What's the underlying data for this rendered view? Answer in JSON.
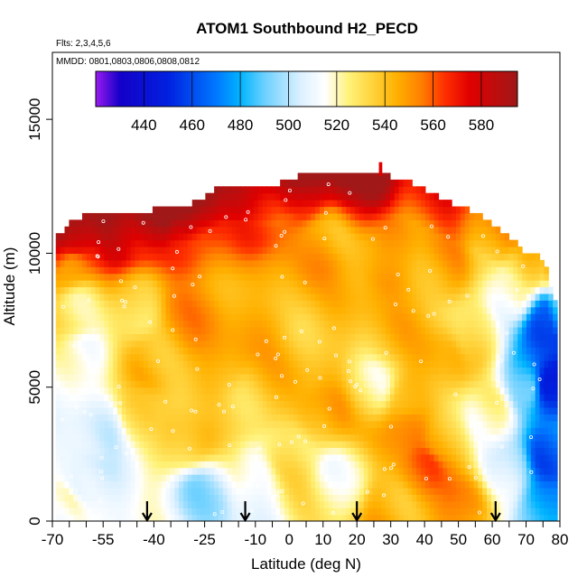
{
  "chart_data": {
    "type": "heatmap",
    "title": "ATOM1 Southbound H2_PECD",
    "subtitle_flights": "Flts: 2,3,4,5,6",
    "subtitle_dates": "MMDD: 0801,0803,0806,0808,0812",
    "xlabel": "Latitude (deg N)",
    "ylabel": "Altitude (m)",
    "xlim": [
      -70,
      80
    ],
    "ylim": [
      0,
      17500
    ],
    "x_ticks_labeled": [
      -70,
      -55,
      -40,
      -25,
      -10,
      0,
      10,
      20,
      30,
      40,
      50,
      60,
      70,
      80
    ],
    "x_tick_labels": [
      "-70",
      "-55",
      "-40",
      "-25",
      "-10",
      "0",
      "10",
      "20",
      "30",
      "40",
      "50",
      "60",
      "70",
      "80"
    ],
    "x_minor_ticks": [
      -65,
      -60,
      -50,
      -45,
      -35,
      -30,
      -20,
      -15,
      -5,
      5,
      15,
      25,
      35,
      45,
      55,
      65,
      75
    ],
    "y_ticks": [
      0,
      5000,
      10000,
      15000
    ],
    "y_tick_labels": [
      "0",
      "5000",
      "10000",
      "15000"
    ],
    "colorbar": {
      "min": 420,
      "max": 595,
      "ticks": [
        440,
        460,
        480,
        500,
        520,
        540,
        560,
        580
      ],
      "tick_labels": [
        "440",
        "460",
        "480",
        "500",
        "520",
        "540",
        "560",
        "580"
      ],
      "stops": [
        {
          "v": 420,
          "c": "#9A1BF0"
        },
        {
          "v": 430,
          "c": "#1400C8"
        },
        {
          "v": 450,
          "c": "#0020E0"
        },
        {
          "v": 470,
          "c": "#0078FF"
        },
        {
          "v": 480,
          "c": "#00B4FF"
        },
        {
          "v": 490,
          "c": "#6CD0FF"
        },
        {
          "v": 505,
          "c": "#DCF0FF"
        },
        {
          "v": 515,
          "c": "#FFFFFF"
        },
        {
          "v": 525,
          "c": "#FFF27A"
        },
        {
          "v": 535,
          "c": "#FFD23A"
        },
        {
          "v": 545,
          "c": "#FFB000"
        },
        {
          "v": 555,
          "c": "#FF8000"
        },
        {
          "v": 565,
          "c": "#FF2E00"
        },
        {
          "v": 575,
          "c": "#E00000"
        },
        {
          "v": 595,
          "c": "#A01818"
        }
      ]
    },
    "profile_markers_lat": [
      -42,
      -13,
      20,
      61
    ],
    "ceiling": [
      {
        "lat": -69,
        "alt": 10500
      },
      {
        "lat": -65,
        "alt": 11000
      },
      {
        "lat": -60,
        "alt": 11300
      },
      {
        "lat": -55,
        "alt": 11500
      },
      {
        "lat": -48,
        "alt": 11500
      },
      {
        "lat": -40,
        "alt": 11500
      },
      {
        "lat": -30,
        "alt": 11600
      },
      {
        "lat": -20,
        "alt": 12400
      },
      {
        "lat": -5,
        "alt": 12400
      },
      {
        "lat": 5,
        "alt": 12900
      },
      {
        "lat": 20,
        "alt": 12900
      },
      {
        "lat": 25,
        "alt": 12900
      },
      {
        "lat": 35,
        "alt": 12600
      },
      {
        "lat": 45,
        "alt": 11900
      },
      {
        "lat": 55,
        "alt": 11400
      },
      {
        "lat": 65,
        "alt": 10500
      },
      {
        "lat": 70,
        "alt": 9900
      },
      {
        "lat": 75,
        "alt": 9700
      },
      {
        "lat": 79,
        "alt": 8000
      }
    ],
    "field_centers": [
      {
        "lat": -67,
        "alt": 500,
        "v": 522
      },
      {
        "lat": -60,
        "alt": 1500,
        "v": 500
      },
      {
        "lat": -55,
        "alt": 3500,
        "v": 510
      },
      {
        "lat": -62,
        "alt": 6000,
        "v": 512
      },
      {
        "lat": -62,
        "alt": 8000,
        "v": 530
      },
      {
        "lat": -65,
        "alt": 9500,
        "v": 552
      },
      {
        "lat": -63,
        "alt": 10500,
        "v": 565
      },
      {
        "lat": -50,
        "alt": 10900,
        "v": 575
      },
      {
        "lat": -40,
        "alt": 11200,
        "v": 580
      },
      {
        "lat": -30,
        "alt": 11000,
        "v": 568
      },
      {
        "lat": -45,
        "alt": 4000,
        "v": 528
      },
      {
        "lat": -40,
        "alt": 6000,
        "v": 545
      },
      {
        "lat": -45,
        "alt": 8000,
        "v": 530
      },
      {
        "lat": -30,
        "alt": 7500,
        "v": 548
      },
      {
        "lat": -20,
        "alt": 6000,
        "v": 545
      },
      {
        "lat": -10,
        "alt": 4500,
        "v": 538
      },
      {
        "lat": -30,
        "alt": 3000,
        "v": 535
      },
      {
        "lat": -25,
        "alt": 1000,
        "v": 500
      },
      {
        "lat": -10,
        "alt": 1500,
        "v": 512
      },
      {
        "lat": 0,
        "alt": 2500,
        "v": 530
      },
      {
        "lat": 5,
        "alt": 6000,
        "v": 540
      },
      {
        "lat": -5,
        "alt": 8500,
        "v": 545
      },
      {
        "lat": 15,
        "alt": 8000,
        "v": 540
      },
      {
        "lat": 30,
        "alt": 7000,
        "v": 540
      },
      {
        "lat": 25,
        "alt": 5000,
        "v": 525
      },
      {
        "lat": 10,
        "alt": 4000,
        "v": 545
      },
      {
        "lat": 35,
        "alt": 3500,
        "v": 550
      },
      {
        "lat": 40,
        "alt": 2000,
        "v": 555
      },
      {
        "lat": 15,
        "alt": 1500,
        "v": 520
      },
      {
        "lat": 50,
        "alt": 500,
        "v": 552
      },
      {
        "lat": 30,
        "alt": 500,
        "v": 545
      },
      {
        "lat": 45,
        "alt": 6000,
        "v": 542
      },
      {
        "lat": 55,
        "alt": 7000,
        "v": 530
      },
      {
        "lat": 60,
        "alt": 4000,
        "v": 520
      },
      {
        "lat": 65,
        "alt": 2000,
        "v": 505
      },
      {
        "lat": 70,
        "alt": 5000,
        "v": 490
      },
      {
        "lat": 77,
        "alt": 5000,
        "v": 445
      },
      {
        "lat": 77,
        "alt": 7500,
        "v": 455
      },
      {
        "lat": 77,
        "alt": 2500,
        "v": 465
      },
      {
        "lat": 76,
        "alt": 500,
        "v": 480
      },
      {
        "lat": 65,
        "alt": 8500,
        "v": 518
      },
      {
        "lat": 70,
        "alt": 9500,
        "v": 515
      },
      {
        "lat": 45,
        "alt": 9500,
        "v": 548
      },
      {
        "lat": 30,
        "alt": 10000,
        "v": 550
      },
      {
        "lat": 10,
        "alt": 10500,
        "v": 545
      },
      {
        "lat": 20,
        "alt": 12500,
        "v": 575
      },
      {
        "lat": 5,
        "alt": 12200,
        "v": 570
      },
      {
        "lat": -10,
        "alt": 11500,
        "v": 560
      },
      {
        "lat": 40,
        "alt": 11800,
        "v": 545
      },
      {
        "lat": 60,
        "alt": 10500,
        "v": 530
      },
      {
        "lat": 35,
        "alt": 4500,
        "v": 545
      },
      {
        "lat": 45,
        "alt": 3000,
        "v": 540
      }
    ]
  }
}
